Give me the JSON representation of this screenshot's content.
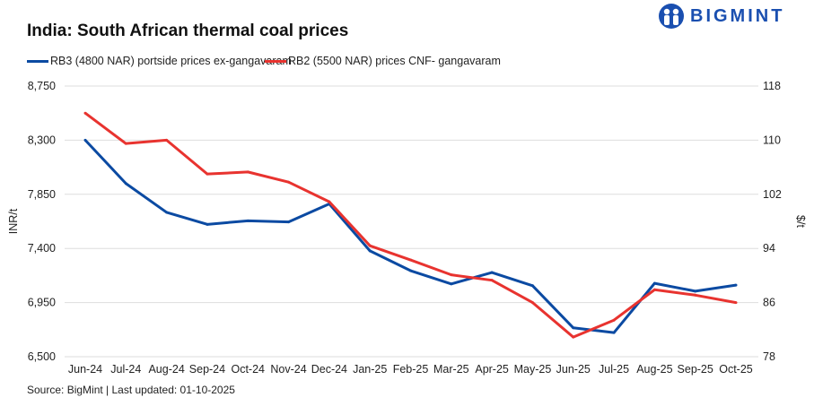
{
  "header": {
    "title": "India: South African thermal coal prices",
    "logo_text": "BIGMINT"
  },
  "footer": {
    "source": "Source: BigMint | Last updated: 01-10-2025"
  },
  "colors": {
    "rb3": "#0b4aa2",
    "rb2": "#e8332f",
    "grid": "#dddddd",
    "brand": "#1a4fb0"
  },
  "chart_data": {
    "type": "line",
    "title": "India: South African thermal coal prices",
    "categories": [
      "Jun-24",
      "Jul-24",
      "Aug-24",
      "Sep-24",
      "Oct-24",
      "Nov-24",
      "Dec-24",
      "Jan-25",
      "Feb-25",
      "Mar-25",
      "Apr-25",
      "May-25",
      "Jun-25",
      "Jul-25",
      "Aug-25",
      "Sep-25",
      "Oct-25"
    ],
    "ylabel": "INR/t",
    "y2label": "$/t",
    "ylim": [
      6500,
      8750
    ],
    "yticks": [
      "6,500",
      "6,950",
      "7,400",
      "7,850",
      "8,300",
      "8,750"
    ],
    "y2lim": [
      78,
      118
    ],
    "y2ticks": [
      "78",
      "86",
      "94",
      "102",
      "110",
      "118"
    ],
    "grid": true,
    "legend": "top-left",
    "series": [
      {
        "name": "RB3 (4800 NAR) portside prices ex-gangavaram",
        "axis": "left",
        "color": "#0b4aa2",
        "values": [
          8300,
          7940,
          7700,
          7600,
          7630,
          7620,
          7770,
          7380,
          7215,
          7105,
          7200,
          7090,
          6740,
          6700,
          7110,
          7045,
          7095
        ]
      },
      {
        "name": "RB2 (5500 NAR) prices CNF- gangavaram",
        "axis": "right",
        "color": "#e8332f",
        "values": [
          114,
          109.5,
          110,
          105,
          105.3,
          103.8,
          100.9,
          94.4,
          92.3,
          90.1,
          89.3,
          86,
          80.9,
          83.4,
          87.9,
          87.1,
          86
        ]
      }
    ]
  }
}
